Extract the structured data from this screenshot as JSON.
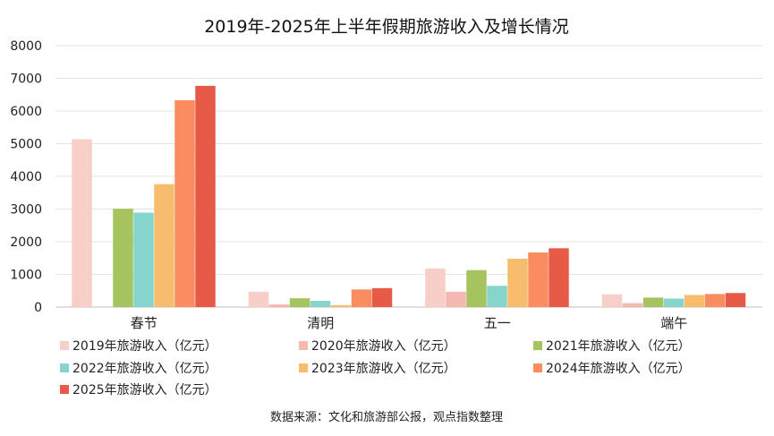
{
  "chart_data": {
    "type": "bar",
    "title": "2019年-2025年上半年假期旅游收入及增长情况",
    "categories": [
      "春节",
      "清明",
      "五一",
      "端午"
    ],
    "series": [
      {
        "name": "2019年旅游收入（亿元）",
        "color": "#f7cfc8",
        "values": [
          5140,
          470,
          1180,
          390
        ]
      },
      {
        "name": "2020年旅游收入（亿元）",
        "color": "#f4b8b1",
        "values": [
          0,
          80,
          470,
          120
        ]
      },
      {
        "name": "2021年旅游收入（亿元）",
        "color": "#a5c35f",
        "values": [
          3010,
          270,
          1130,
          290
        ]
      },
      {
        "name": "2022年旅游收入（亿元）",
        "color": "#86d5cc",
        "values": [
          2890,
          190,
          650,
          260
        ]
      },
      {
        "name": "2023年旅游收入（亿元）",
        "color": "#f7bd6d",
        "values": [
          3760,
          60,
          1480,
          370
        ]
      },
      {
        "name": "2024年旅游收入（亿元）",
        "color": "#f98d60",
        "values": [
          6330,
          540,
          1670,
          400
        ]
      },
      {
        "name": "2025年旅游收入（亿元）",
        "color": "#e85a48",
        "values": [
          6770,
          580,
          1800,
          430
        ]
      }
    ],
    "ylim": [
      0,
      8000
    ],
    "yticks": [
      0,
      1000,
      2000,
      3000,
      4000,
      5000,
      6000,
      7000,
      8000
    ],
    "grid": true,
    "legend_placement": "bottom"
  },
  "source": "数据来源：文化和旅游部公报，观点指数整理"
}
